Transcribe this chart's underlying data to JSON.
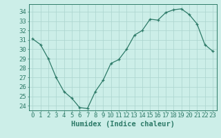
{
  "x": [
    0,
    1,
    2,
    3,
    4,
    5,
    6,
    7,
    8,
    9,
    10,
    11,
    12,
    13,
    14,
    15,
    16,
    17,
    18,
    19,
    20,
    21,
    22,
    23
  ],
  "y": [
    31.1,
    30.5,
    29.0,
    27.0,
    25.5,
    24.8,
    23.8,
    23.7,
    25.5,
    26.7,
    28.5,
    28.9,
    30.0,
    31.5,
    32.0,
    33.2,
    33.1,
    33.9,
    34.2,
    34.3,
    33.7,
    32.7,
    30.5,
    29.8
  ],
  "line_color": "#2d7a68",
  "bg_color": "#cceee8",
  "grid_color": "#aad4ce",
  "xlabel": "Humidex (Indice chaleur)",
  "ylim": [
    23.5,
    34.8
  ],
  "xlim": [
    -0.5,
    23.5
  ],
  "yticks": [
    24,
    25,
    26,
    27,
    28,
    29,
    30,
    31,
    32,
    33,
    34
  ],
  "xticks": [
    0,
    1,
    2,
    3,
    4,
    5,
    6,
    7,
    8,
    9,
    10,
    11,
    12,
    13,
    14,
    15,
    16,
    17,
    18,
    19,
    20,
    21,
    22,
    23
  ],
  "label_fontsize": 7.5,
  "tick_fontsize": 6.5
}
